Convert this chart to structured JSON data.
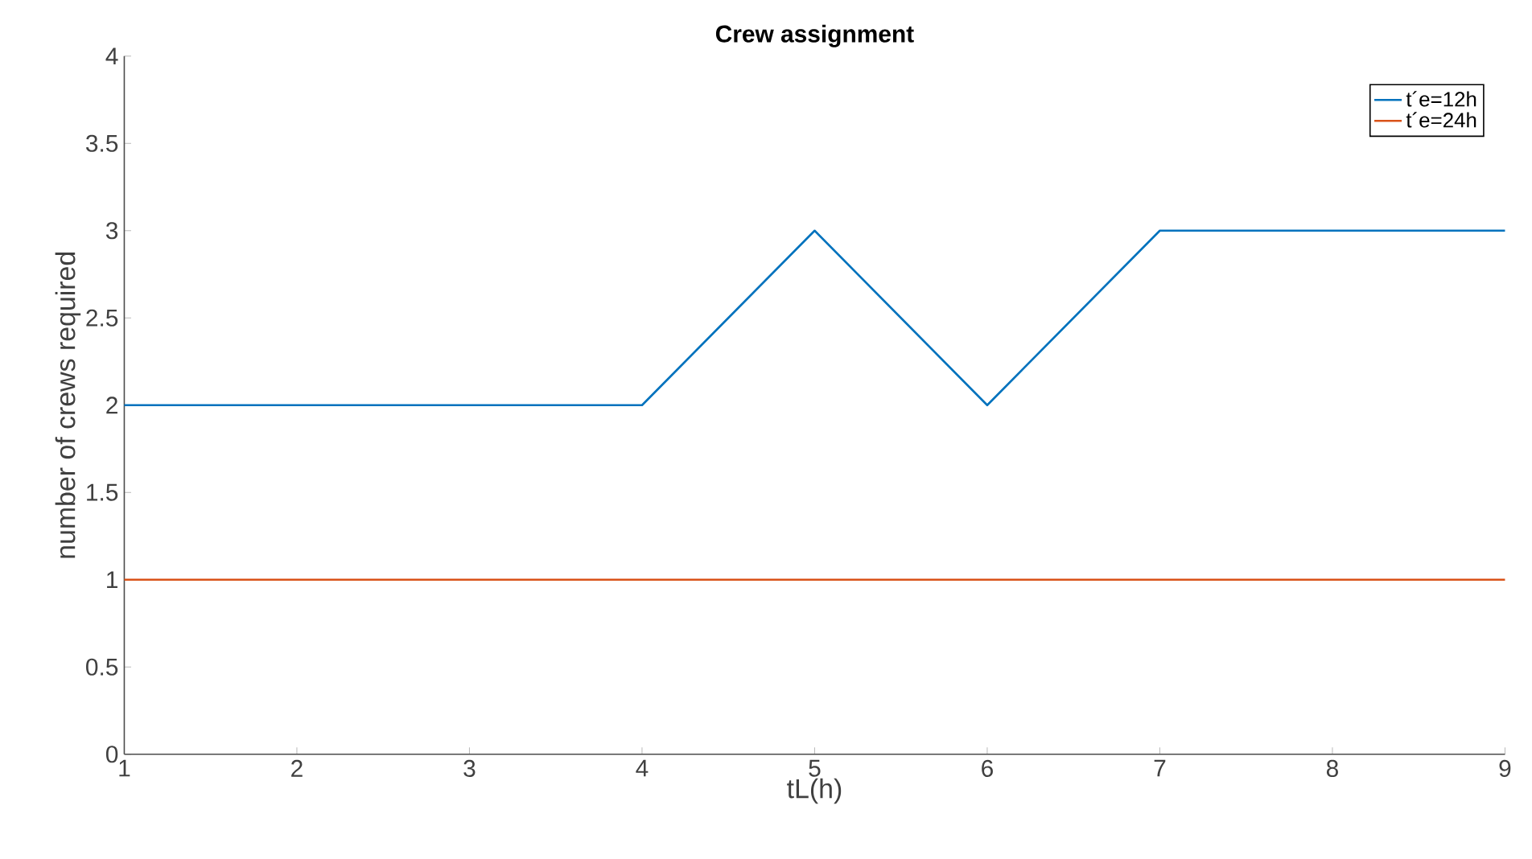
{
  "chart_data": {
    "type": "line",
    "title": "Crew assignment",
    "xlabel": "tL(h)",
    "ylabel": "number of crews required",
    "x": [
      1,
      2,
      3,
      4,
      5,
      6,
      7,
      8,
      9
    ],
    "series": [
      {
        "name": "t´e=12h",
        "color": "#0072bd",
        "values": [
          2,
          2,
          2,
          2,
          3,
          2,
          3,
          3,
          3
        ]
      },
      {
        "name": "t´e=24h",
        "color": "#d95319",
        "values": [
          1,
          1,
          1,
          1,
          1,
          1,
          1,
          1,
          1
        ]
      }
    ],
    "xlim": [
      1,
      9
    ],
    "xticks": [
      1,
      2,
      3,
      4,
      5,
      6,
      7,
      8,
      9
    ],
    "ylim": [
      0,
      4
    ],
    "yticks": [
      0,
      0.5,
      1,
      1.5,
      2,
      2.5,
      3,
      3.5,
      4
    ],
    "grid": false,
    "legend": "top right",
    "marker": "none",
    "line_style": "solid"
  }
}
